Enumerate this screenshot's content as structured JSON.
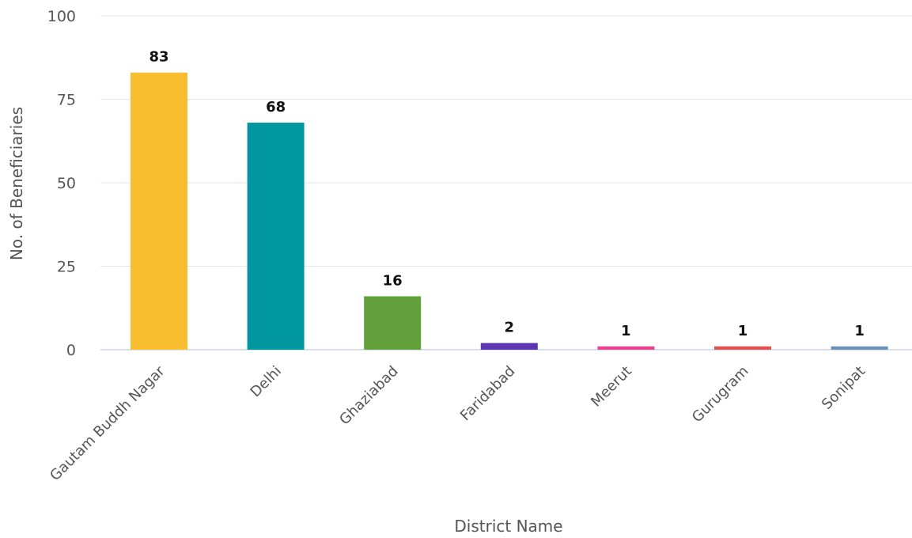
{
  "chart_data": {
    "type": "bar",
    "title": "",
    "xlabel": "District Name",
    "ylabel": "No. of Beneficiaries",
    "categories": [
      "Gautam Buddh Nagar",
      "Delhi",
      "Ghaziabad",
      "Faridabad",
      "Meerut",
      "Gurugram",
      "Sonipat"
    ],
    "values": [
      83,
      68,
      16,
      2,
      1,
      1,
      1
    ],
    "data_labels": [
      "83",
      "68",
      "16",
      "2",
      "1",
      "1",
      "1"
    ],
    "colors": [
      "#f8be2f",
      "#0097a1",
      "#639f3a",
      "#5e35b1",
      "#e84393",
      "#e05252",
      "#6b93b8"
    ],
    "ylim": [
      0,
      100
    ],
    "yticks": [
      0,
      25,
      50,
      75,
      100
    ],
    "ytick_labels": [
      "0",
      "25",
      "50",
      "75",
      "100"
    ],
    "grid": true,
    "legend": "none"
  }
}
